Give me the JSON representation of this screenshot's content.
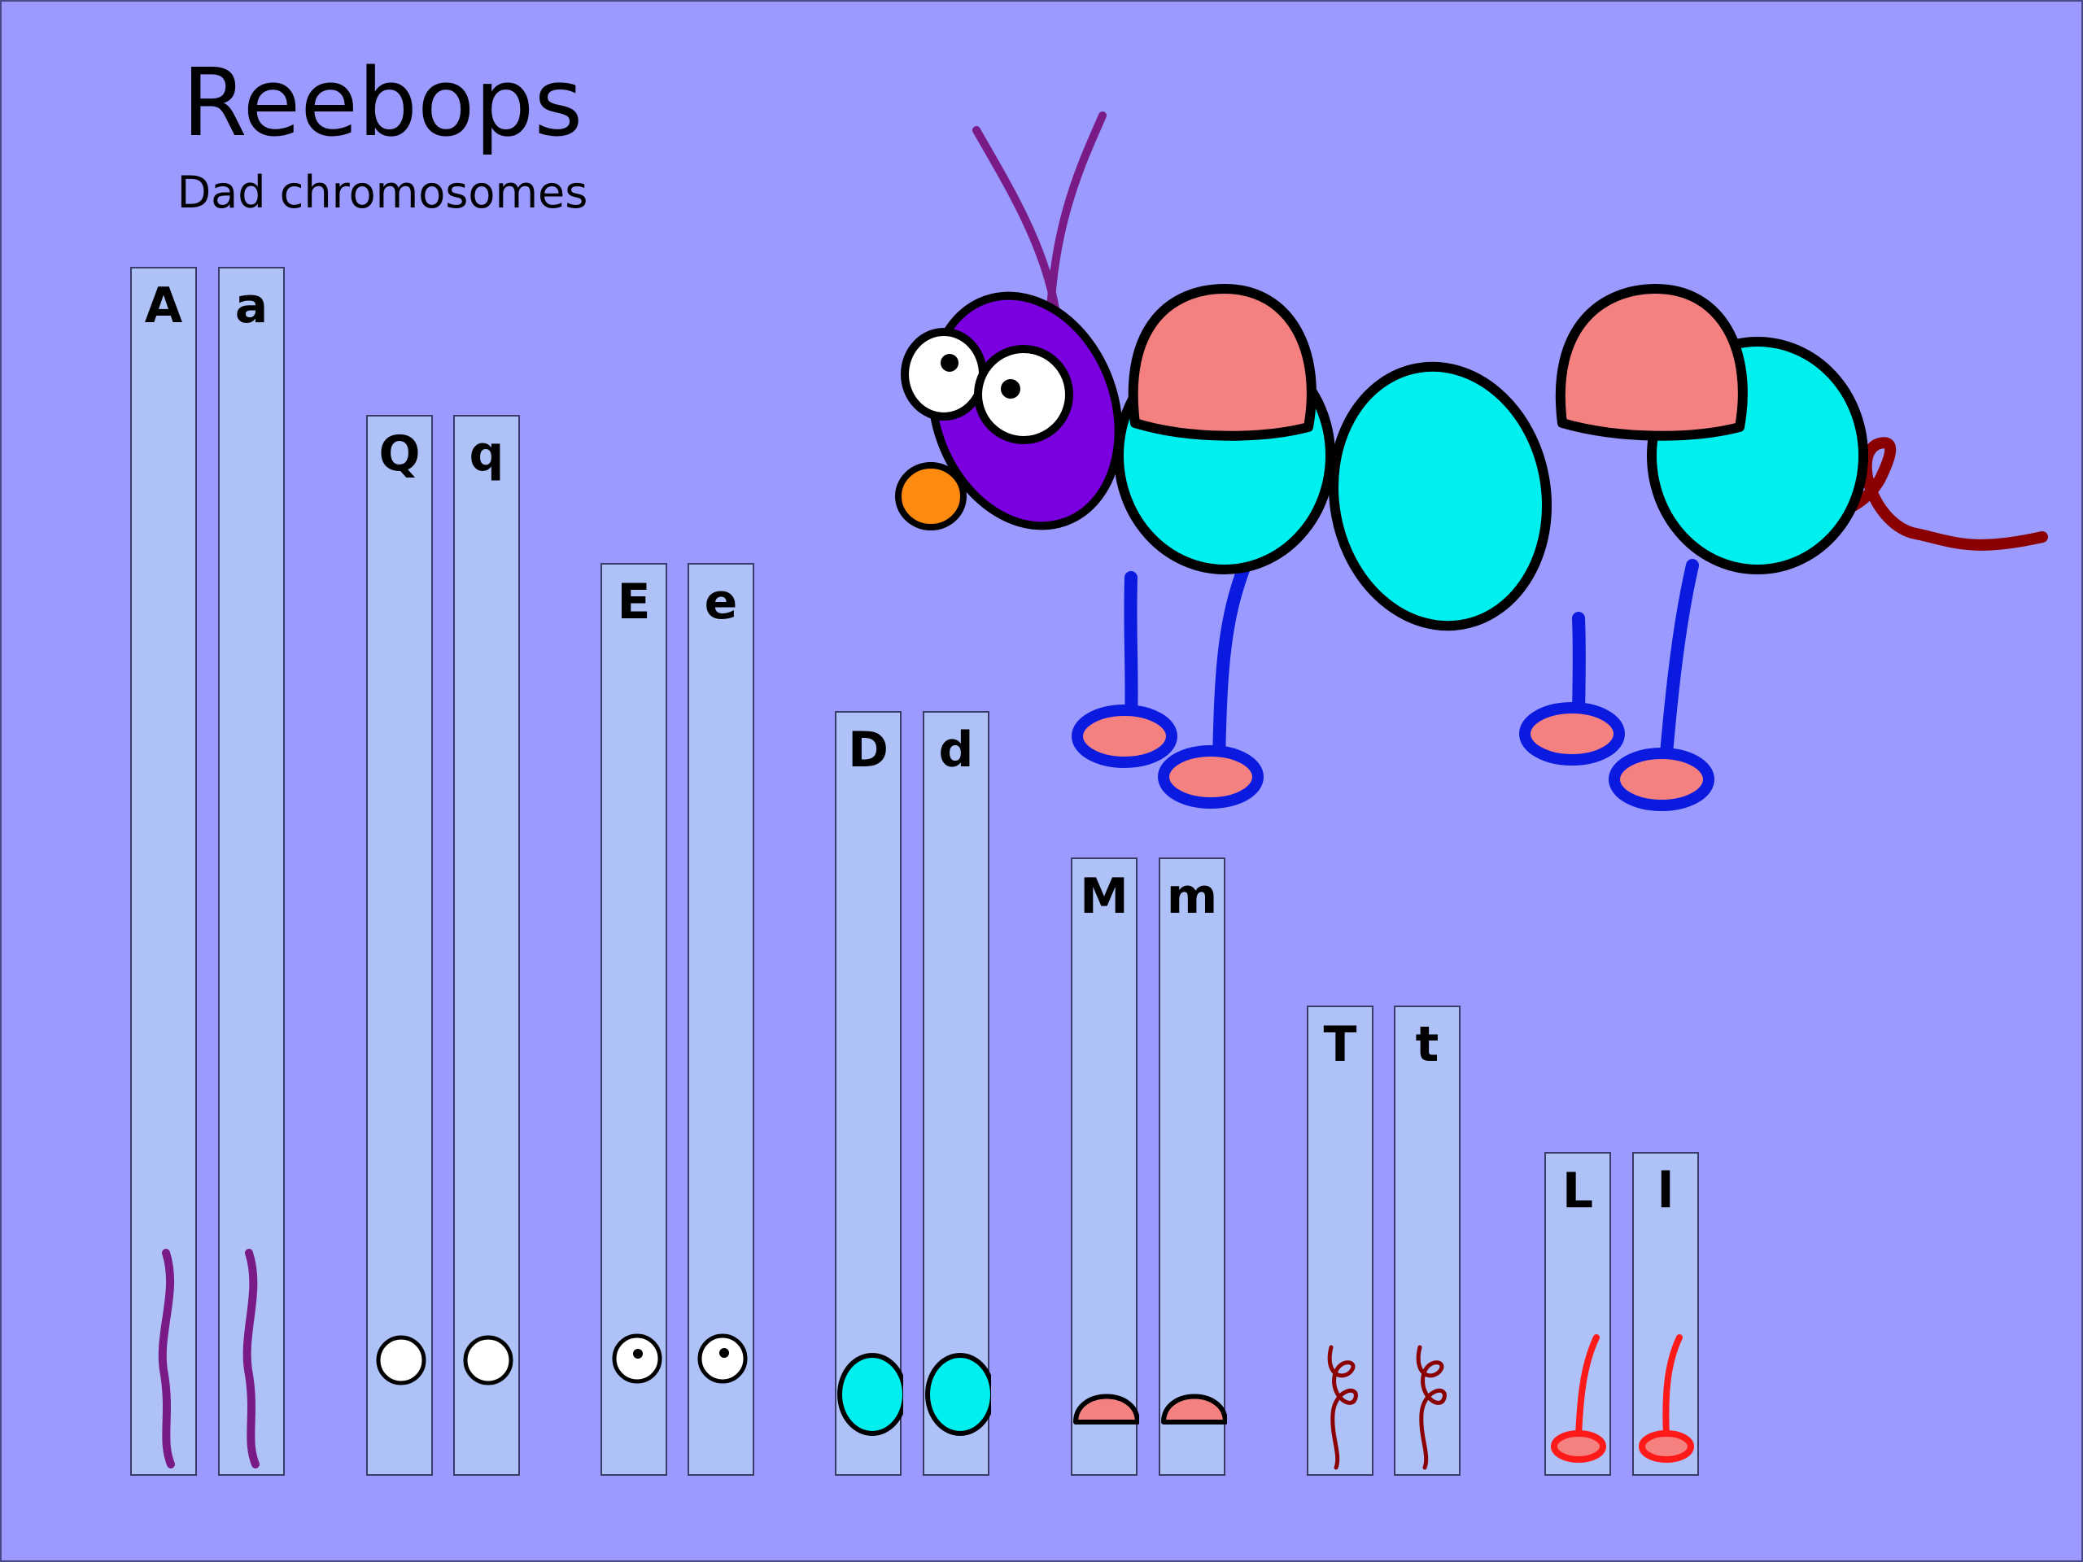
{
  "title": "Reebops",
  "subtitle": "Dad chromosomes",
  "chromosome_pairs": [
    {
      "trait": "antenna",
      "alleles": [
        "A",
        "a"
      ]
    },
    {
      "trait": "eyes",
      "alleles": [
        "Q",
        "q"
      ]
    },
    {
      "trait": "eye-pupil",
      "alleles": [
        "E",
        "e"
      ]
    },
    {
      "trait": "body-segment",
      "alleles": [
        "D",
        "d"
      ]
    },
    {
      "trait": "humps",
      "alleles": [
        "M",
        "m"
      ]
    },
    {
      "trait": "tail",
      "alleles": [
        "T",
        "t"
      ]
    },
    {
      "trait": "legs",
      "alleles": [
        "L",
        "l"
      ]
    }
  ],
  "colors": {
    "background": "#9a9aff",
    "chromosome": "#aec2f8",
    "antenna": "#7a1a86",
    "head": "#7b00e0",
    "nose": "#ff8a10",
    "body": "#00f0f0",
    "hump": "#f48080",
    "tail": "#8b0000",
    "legs": "#0a1adf",
    "leg_gene": "#ff1a1a"
  }
}
